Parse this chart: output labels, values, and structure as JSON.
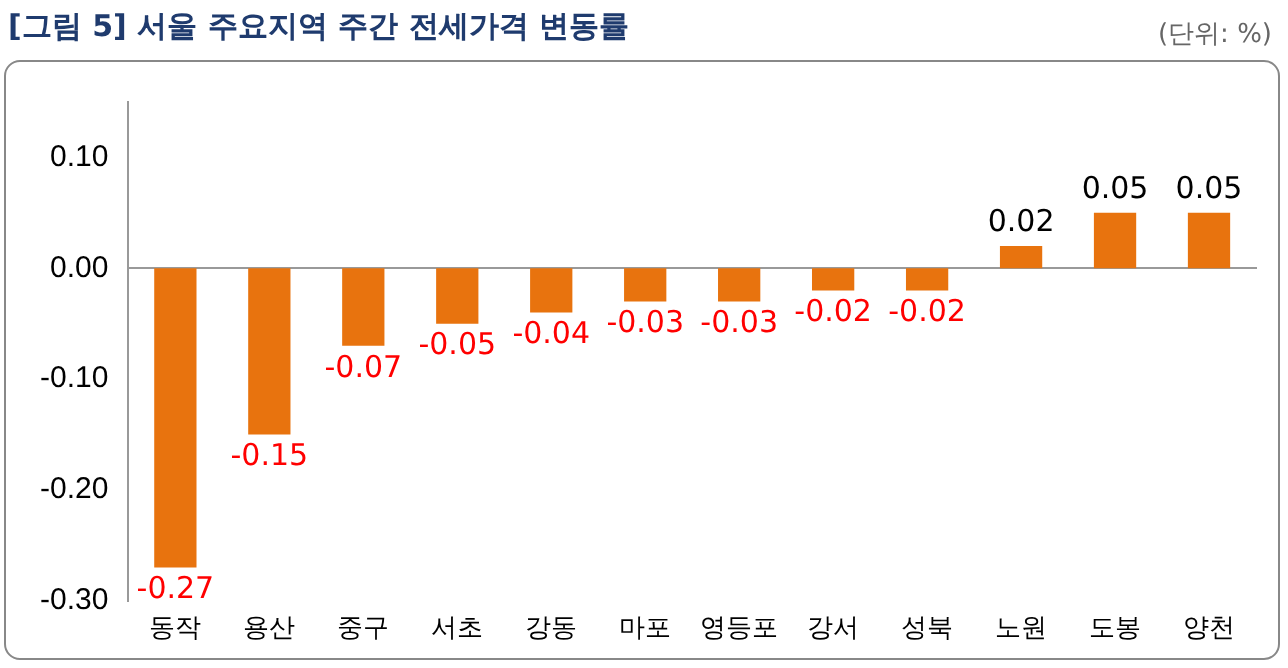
{
  "chart_data": {
    "type": "bar",
    "title": "[그림 5] 서울 주요지역 주간 전세가격 변동률",
    "annotations": [
      "(단위: %)"
    ],
    "categories": [
      "동작",
      "용산",
      "중구",
      "서초",
      "강동",
      "마포",
      "영등포",
      "강서",
      "성북",
      "노원",
      "도봉",
      "양천"
    ],
    "values": [
      -0.27,
      -0.15,
      -0.07,
      -0.05,
      -0.04,
      -0.03,
      -0.03,
      -0.02,
      -0.02,
      0.02,
      0.05,
      0.05
    ],
    "color": "#e8730e",
    "ylim": [
      -0.3,
      0.15
    ],
    "yticks": [
      {
        "value": -0.3,
        "label": "-0.30"
      },
      {
        "value": -0.2,
        "label": "-0.20"
      },
      {
        "value": -0.1,
        "label": "-0.10"
      },
      {
        "value": 0,
        "label": "0.00"
      },
      {
        "value": 0.1,
        "label": "0.10"
      }
    ],
    "data_labels": true,
    "legend": false
  }
}
